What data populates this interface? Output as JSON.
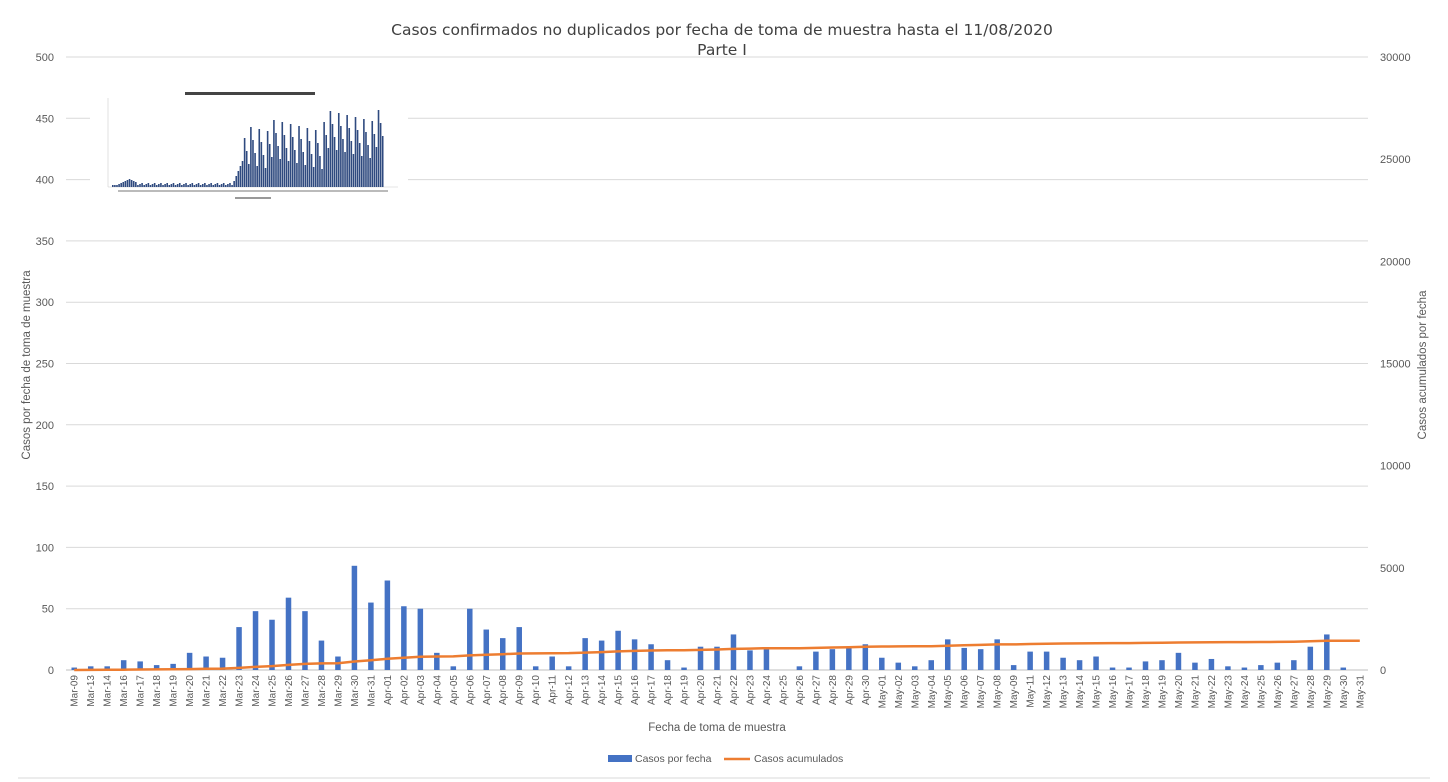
{
  "chart_data": {
    "type": "bar+line",
    "title": "Casos confirmados no duplicados por fecha de toma de muestra hasta el 11/08/2020",
    "subtitle": "Parte I",
    "xlabel": "Fecha de toma de muestra",
    "ylabel_left": "Casos por fecha de toma de muestra",
    "ylabel_right": "Casos acumulados por fecha",
    "ylim_left": [
      0,
      500
    ],
    "ylim_right": [
      0,
      30000
    ],
    "yticks_left": [
      "0",
      "50",
      "100",
      "150",
      "200",
      "250",
      "300",
      "350",
      "400",
      "450",
      "500"
    ],
    "yticks_right": [
      "0",
      "5000",
      "10000",
      "15000",
      "20000",
      "25000",
      "30000"
    ],
    "grid": true,
    "legend_position": "bottom",
    "categories": [
      "Mar-09",
      "Mar-13",
      "Mar-14",
      "Mar-16",
      "Mar-17",
      "Mar-18",
      "Mar-19",
      "Mar-20",
      "Mar-21",
      "Mar-22",
      "Mar-23",
      "Mar-24",
      "Mar-25",
      "Mar-26",
      "Mar-27",
      "Mar-28",
      "Mar-29",
      "Mar-30",
      "Mar-31",
      "Apr-01",
      "Apr-02",
      "Apr-03",
      "Apr-04",
      "Apr-05",
      "Apr-06",
      "Apr-07",
      "Apr-08",
      "Apr-09",
      "Apr-10",
      "Apr-11",
      "Apr-12",
      "Apr-13",
      "Apr-14",
      "Apr-15",
      "Apr-16",
      "Apr-17",
      "Apr-18",
      "Apr-19",
      "Apr-20",
      "Apr-21",
      "Apr-22",
      "Apr-23",
      "Apr-24",
      "Apr-25",
      "Apr-26",
      "Apr-27",
      "Apr-28",
      "Apr-29",
      "Apr-30",
      "May-01",
      "May-02",
      "May-03",
      "May-04",
      "May-05",
      "May-06",
      "May-07",
      "May-08",
      "May-09",
      "May-11",
      "May-12",
      "May-13",
      "May-14",
      "May-15",
      "May-16",
      "May-17",
      "May-18",
      "May-19",
      "May-20",
      "May-21",
      "May-22",
      "May-23",
      "May-24",
      "May-25",
      "May-26",
      "May-27",
      "May-28",
      "May-29",
      "May-30",
      "May-31"
    ],
    "series": [
      {
        "name": "Casos por fecha",
        "type": "bar",
        "axis": "left",
        "color": "#4472C4",
        "values": [
          2,
          3,
          3,
          8,
          7,
          4,
          5,
          14,
          11,
          10,
          35,
          48,
          41,
          59,
          48,
          24,
          11,
          85,
          55,
          73,
          52,
          50,
          14,
          3,
          50,
          33,
          26,
          35,
          3,
          11,
          3,
          26,
          24,
          32,
          25,
          21,
          8,
          2,
          19,
          19,
          29,
          16,
          18,
          0,
          3,
          15,
          17,
          18,
          21,
          10,
          6,
          3,
          8,
          25,
          18,
          17,
          25,
          4,
          15,
          15,
          10,
          8,
          11,
          2,
          2,
          7,
          8,
          14,
          6,
          9,
          3,
          2,
          4,
          6,
          8,
          19,
          29,
          2,
          0
        ]
      },
      {
        "name": "Casos acumulados",
        "type": "line",
        "axis": "right",
        "color": "#ED7D31",
        "values": [
          2,
          5,
          8,
          16,
          23,
          27,
          32,
          46,
          57,
          67,
          102,
          150,
          191,
          250,
          298,
          322,
          333,
          418,
          473,
          546,
          598,
          648,
          662,
          665,
          715,
          748,
          774,
          809,
          812,
          823,
          826,
          852,
          876,
          908,
          933,
          954,
          962,
          964,
          983,
          1002,
          1031,
          1047,
          1065,
          1065,
          1068,
          1083,
          1100,
          1118,
          1139,
          1149,
          1155,
          1158,
          1166,
          1191,
          1209,
          1226,
          1251,
          1255,
          1270,
          1285,
          1295,
          1303,
          1314,
          1316,
          1318,
          1325,
          1333,
          1347,
          1353,
          1362,
          1365,
          1367,
          1371,
          1377,
          1385,
          1404,
          1433,
          1435,
          1435
        ]
      }
    ]
  }
}
